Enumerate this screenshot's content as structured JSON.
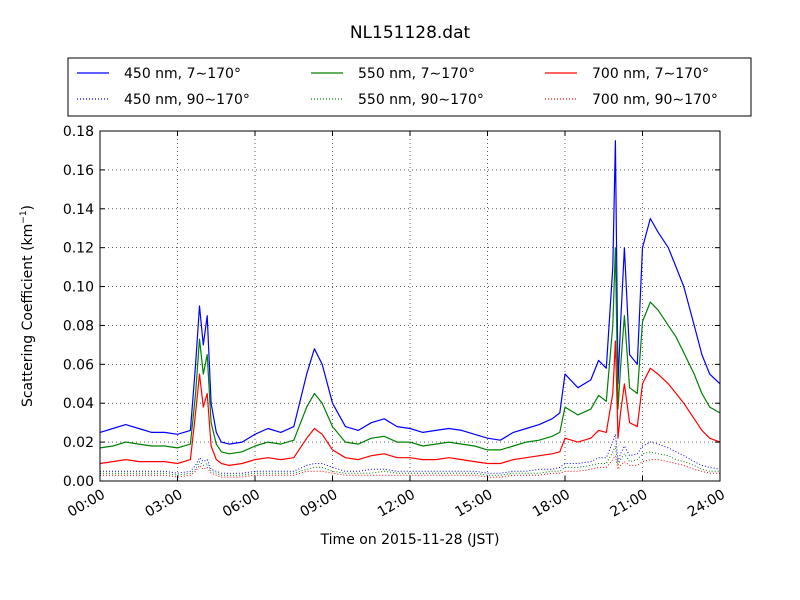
{
  "chart_data": {
    "type": "line",
    "title": "NL151128.dat",
    "xlabel": "Time on 2015-11-28 (JST)",
    "ylabel_main": "Scattering Coefficient (km",
    "ylabel_sup": "−1",
    "ylabel_close": ")",
    "xlim": [
      0,
      24
    ],
    "ylim": [
      0,
      0.18
    ],
    "x_unit": "hours",
    "xticks": [
      0,
      3,
      6,
      9,
      12,
      15,
      18,
      21,
      24
    ],
    "xtick_labels": [
      "00:00",
      "03:00",
      "06:00",
      "09:00",
      "12:00",
      "15:00",
      "18:00",
      "21:00",
      "24:00"
    ],
    "yticks": [
      0,
      0.02,
      0.04,
      0.06,
      0.08,
      0.1,
      0.12,
      0.14,
      0.16,
      0.18
    ],
    "ytick_labels": [
      "0.00",
      "0.02",
      "0.04",
      "0.06",
      "0.08",
      "0.10",
      "0.12",
      "0.14",
      "0.16",
      "0.18"
    ],
    "grid": true,
    "legend_position": "top",
    "x": [
      0,
      0.5,
      1,
      1.5,
      2,
      2.5,
      3,
      3.5,
      3.7,
      3.85,
      4.0,
      4.15,
      4.3,
      4.5,
      4.7,
      5,
      5.5,
      6,
      6.5,
      7,
      7.5,
      8,
      8.3,
      8.6,
      9,
      9.5,
      10,
      10.5,
      11,
      11.5,
      12,
      12.5,
      13,
      13.5,
      14,
      14.5,
      15,
      15.5,
      16,
      16.5,
      17,
      17.5,
      17.8,
      18,
      18.5,
      19,
      19.3,
      19.6,
      19.85,
      19.95,
      20.05,
      20.15,
      20.3,
      20.5,
      20.8,
      21,
      21.3,
      21.6,
      22,
      22.3,
      22.6,
      23,
      23.3,
      23.6,
      24
    ],
    "series": [
      {
        "name": "450 nm, 7∼170°",
        "color": "#0000ff",
        "style": "solid",
        "values": [
          0.025,
          0.027,
          0.029,
          0.027,
          0.025,
          0.025,
          0.024,
          0.026,
          0.06,
          0.09,
          0.07,
          0.085,
          0.04,
          0.025,
          0.02,
          0.019,
          0.02,
          0.024,
          0.027,
          0.025,
          0.028,
          0.055,
          0.068,
          0.06,
          0.04,
          0.028,
          0.026,
          0.03,
          0.032,
          0.028,
          0.027,
          0.025,
          0.026,
          0.027,
          0.026,
          0.024,
          0.022,
          0.021,
          0.025,
          0.027,
          0.029,
          0.032,
          0.035,
          0.055,
          0.048,
          0.052,
          0.062,
          0.058,
          0.11,
          0.175,
          0.05,
          0.08,
          0.12,
          0.065,
          0.06,
          0.12,
          0.135,
          0.128,
          0.12,
          0.11,
          0.1,
          0.08,
          0.065,
          0.055,
          0.05
        ]
      },
      {
        "name": "550 nm, 7∼170°",
        "color": "#008000",
        "style": "solid",
        "values": [
          0.017,
          0.018,
          0.02,
          0.019,
          0.018,
          0.018,
          0.017,
          0.019,
          0.045,
          0.073,
          0.055,
          0.065,
          0.03,
          0.019,
          0.015,
          0.014,
          0.015,
          0.018,
          0.02,
          0.019,
          0.021,
          0.038,
          0.045,
          0.04,
          0.028,
          0.02,
          0.019,
          0.022,
          0.023,
          0.02,
          0.02,
          0.018,
          0.019,
          0.02,
          0.019,
          0.018,
          0.016,
          0.016,
          0.018,
          0.02,
          0.021,
          0.023,
          0.025,
          0.038,
          0.034,
          0.037,
          0.044,
          0.041,
          0.08,
          0.12,
          0.037,
          0.058,
          0.085,
          0.048,
          0.045,
          0.082,
          0.092,
          0.088,
          0.08,
          0.074,
          0.066,
          0.055,
          0.045,
          0.038,
          0.035
        ]
      },
      {
        "name": "700 nm, 7∼170°",
        "color": "#ff0000",
        "style": "solid",
        "values": [
          0.009,
          0.01,
          0.011,
          0.01,
          0.01,
          0.01,
          0.009,
          0.011,
          0.035,
          0.055,
          0.038,
          0.045,
          0.018,
          0.011,
          0.009,
          0.008,
          0.009,
          0.011,
          0.012,
          0.011,
          0.012,
          0.022,
          0.027,
          0.024,
          0.016,
          0.012,
          0.011,
          0.013,
          0.014,
          0.012,
          0.012,
          0.011,
          0.011,
          0.012,
          0.011,
          0.01,
          0.009,
          0.009,
          0.011,
          0.012,
          0.013,
          0.014,
          0.015,
          0.022,
          0.02,
          0.022,
          0.026,
          0.025,
          0.045,
          0.072,
          0.022,
          0.035,
          0.05,
          0.03,
          0.028,
          0.05,
          0.058,
          0.055,
          0.05,
          0.045,
          0.04,
          0.032,
          0.026,
          0.022,
          0.02
        ]
      },
      {
        "name": "450 nm, 90∼170°",
        "color": "#0000ff",
        "style": "dotted",
        "values": [
          0.005,
          0.005,
          0.005,
          0.005,
          0.005,
          0.005,
          0.004,
          0.005,
          0.008,
          0.012,
          0.01,
          0.011,
          0.006,
          0.005,
          0.004,
          0.004,
          0.004,
          0.005,
          0.005,
          0.005,
          0.005,
          0.008,
          0.009,
          0.009,
          0.007,
          0.005,
          0.005,
          0.006,
          0.006,
          0.005,
          0.005,
          0.005,
          0.005,
          0.005,
          0.005,
          0.005,
          0.004,
          0.004,
          0.005,
          0.005,
          0.006,
          0.006,
          0.007,
          0.009,
          0.009,
          0.01,
          0.012,
          0.012,
          0.02,
          0.024,
          0.01,
          0.014,
          0.018,
          0.013,
          0.014,
          0.018,
          0.02,
          0.019,
          0.017,
          0.015,
          0.013,
          0.01,
          0.008,
          0.007,
          0.006
        ]
      },
      {
        "name": "550 nm, 90∼170°",
        "color": "#008000",
        "style": "dotted",
        "values": [
          0.004,
          0.004,
          0.004,
          0.004,
          0.004,
          0.004,
          0.003,
          0.004,
          0.006,
          0.01,
          0.008,
          0.009,
          0.005,
          0.004,
          0.003,
          0.003,
          0.003,
          0.004,
          0.004,
          0.004,
          0.004,
          0.006,
          0.007,
          0.007,
          0.005,
          0.004,
          0.004,
          0.004,
          0.005,
          0.004,
          0.004,
          0.004,
          0.004,
          0.004,
          0.004,
          0.004,
          0.003,
          0.003,
          0.004,
          0.004,
          0.004,
          0.005,
          0.005,
          0.007,
          0.007,
          0.008,
          0.009,
          0.009,
          0.015,
          0.018,
          0.008,
          0.011,
          0.014,
          0.01,
          0.011,
          0.014,
          0.015,
          0.014,
          0.013,
          0.011,
          0.01,
          0.008,
          0.006,
          0.005,
          0.005
        ]
      },
      {
        "name": "700 nm, 90∼170°",
        "color": "#ff0000",
        "style": "dotted",
        "values": [
          0.003,
          0.003,
          0.003,
          0.003,
          0.003,
          0.003,
          0.002,
          0.003,
          0.005,
          0.008,
          0.006,
          0.007,
          0.004,
          0.003,
          0.002,
          0.002,
          0.002,
          0.003,
          0.003,
          0.003,
          0.003,
          0.005,
          0.005,
          0.005,
          0.004,
          0.003,
          0.003,
          0.003,
          0.003,
          0.003,
          0.003,
          0.003,
          0.003,
          0.003,
          0.003,
          0.003,
          0.002,
          0.002,
          0.003,
          0.003,
          0.003,
          0.004,
          0.004,
          0.005,
          0.005,
          0.006,
          0.007,
          0.007,
          0.011,
          0.013,
          0.006,
          0.008,
          0.01,
          0.008,
          0.008,
          0.01,
          0.011,
          0.011,
          0.01,
          0.009,
          0.008,
          0.006,
          0.005,
          0.004,
          0.004
        ]
      }
    ]
  }
}
